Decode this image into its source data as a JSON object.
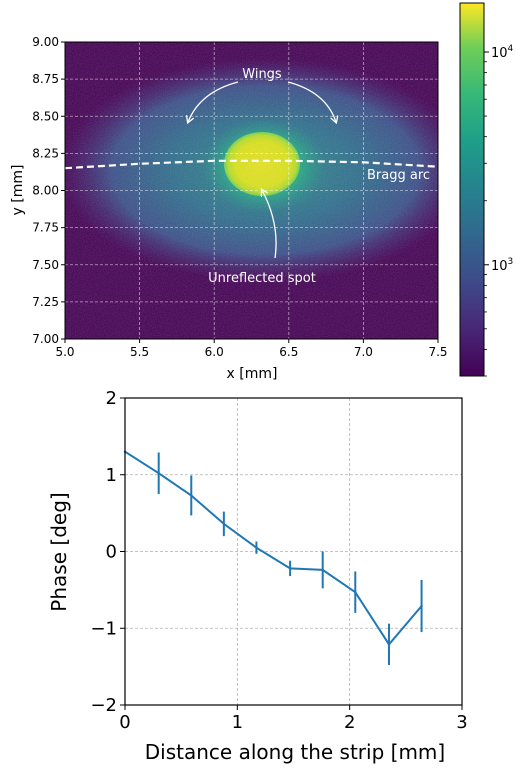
{
  "chart_data": [
    {
      "type": "heatmap",
      "xlabel": "x [mm]",
      "ylabel": "y [mm]",
      "xlim": [
        5.0,
        7.5
      ],
      "ylim": [
        7.0,
        9.0
      ],
      "xticks": [
        "5.0",
        "5.5",
        "6.0",
        "6.5",
        "7.0",
        "7.5"
      ],
      "yticks": [
        "7.00",
        "7.25",
        "7.50",
        "7.75",
        "8.00",
        "8.25",
        "8.50",
        "8.75",
        "9.00"
      ],
      "grid": true,
      "colorscale": "viridis",
      "colorbar": {
        "scale": "log",
        "range": [
          300,
          17000
        ],
        "ticks": [
          {
            "value": 1000,
            "base": "10",
            "exp": "3"
          },
          {
            "value": 10000,
            "base": "10",
            "exp": "4"
          }
        ]
      },
      "annotations": {
        "wings": "Wings",
        "bragg_arc": "Bragg arc",
        "unreflected_spot": "Unreflected spot"
      },
      "features": {
        "spot_center": {
          "x": 6.27,
          "y": 8.17
        },
        "bragg_arc_x": [
          5.0,
          5.5,
          6.0,
          6.5,
          7.0,
          7.5
        ],
        "bragg_arc_y": [
          8.15,
          8.18,
          8.2,
          8.2,
          8.19,
          8.16
        ]
      }
    },
    {
      "type": "line",
      "xlabel": "Distance along the strip [mm]",
      "ylabel": "Phase [deg]",
      "xlim": [
        0,
        3
      ],
      "ylim": [
        -2,
        2
      ],
      "xticks": [
        "0",
        "1",
        "2",
        "3"
      ],
      "yticks": [
        "−2",
        "−1",
        "0",
        "1",
        "2"
      ],
      "grid": true,
      "color": "#1f77b4",
      "series": [
        {
          "x": [
            0.0,
            0.3,
            0.59,
            0.88,
            1.17,
            1.47,
            1.76,
            2.05,
            2.35,
            2.64
          ],
          "y": [
            1.3,
            1.02,
            0.73,
            0.36,
            0.05,
            -0.22,
            -0.24,
            -0.53,
            -1.21,
            -0.71
          ],
          "yerr": [
            0.0,
            0.27,
            0.26,
            0.16,
            0.08,
            0.1,
            0.24,
            0.27,
            0.27,
            0.34
          ]
        }
      ]
    }
  ]
}
